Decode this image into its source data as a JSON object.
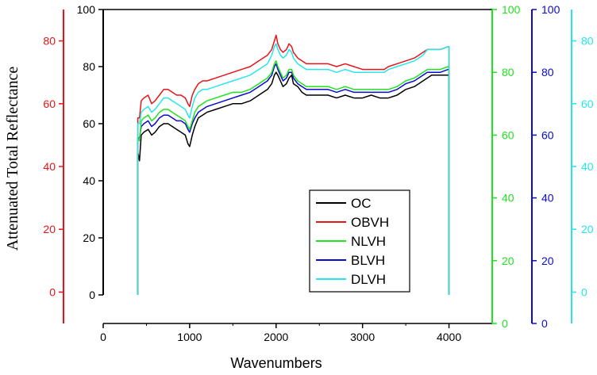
{
  "chart_data": {
    "type": "line",
    "title": "",
    "xlabel": "Wavenumbers",
    "ylabel": "Attenuated  Total  Reflectance",
    "xlim": [
      0,
      4500
    ],
    "x_ticks": [
      0,
      1000,
      2000,
      3000,
      4000
    ],
    "grid": false,
    "legend_position": "lower-right",
    "axes": [
      {
        "name": "red-axis",
        "color": "#e8141b",
        "range": [
          -10,
          90
        ],
        "ticks": [
          0,
          20,
          40,
          60,
          80
        ],
        "tick_labels": [
          "0",
          "20",
          "40",
          "60",
          "80"
        ]
      },
      {
        "name": "black-axis",
        "color": "#000000",
        "range": [
          0,
          100
        ],
        "ticks": [
          0,
          20,
          40,
          60,
          80,
          100
        ],
        "tick_labels": [
          "0",
          "20",
          "40",
          "60",
          "80",
          "100"
        ]
      },
      {
        "name": "green-axis",
        "color": "#1fe31f",
        "range": [
          0,
          100
        ],
        "ticks": [
          0,
          20,
          40,
          60,
          80,
          100
        ],
        "tick_labels": [
          "0",
          "20",
          "40",
          "60",
          "80",
          "100"
        ]
      },
      {
        "name": "blue-axis",
        "color": "#0a0ad0",
        "range": [
          0,
          100
        ],
        "ticks": [
          0,
          20,
          40,
          60,
          80,
          100
        ],
        "tick_labels": [
          "0",
          "20",
          "40",
          "60",
          "80",
          "100"
        ]
      },
      {
        "name": "cyan-axis",
        "color": "#25e6ea",
        "range": [
          -10,
          90
        ],
        "ticks": [
          0,
          20,
          40,
          60,
          80
        ],
        "tick_labels": [
          "0",
          "20",
          "40",
          "60",
          "80"
        ]
      }
    ],
    "series": [
      {
        "name": "OC",
        "color": "#000000",
        "x": [
          400,
          400,
          420,
          440,
          470,
          520,
          560,
          600,
          650,
          700,
          750,
          800,
          850,
          900,
          950,
          980,
          1000,
          1030,
          1060,
          1100,
          1150,
          1200,
          1300,
          1400,
          1500,
          1600,
          1700,
          1800,
          1900,
          1950,
          1980,
          2000,
          2020,
          2050,
          2080,
          2120,
          2150,
          2180,
          2200,
          2250,
          2300,
          2350,
          2400,
          2500,
          2600,
          2700,
          2800,
          2900,
          3000,
          3100,
          3200,
          3250,
          3300,
          3400,
          3500,
          3600,
          3700,
          3750,
          3800,
          3900,
          3990,
          4000,
          4000
        ],
        "y": [
          0,
          50,
          47,
          56,
          57,
          58,
          56,
          57,
          59,
          60,
          60,
          59,
          58,
          57,
          56,
          53,
          52,
          56,
          59,
          62,
          63,
          64,
          65,
          66,
          67,
          67,
          68,
          70,
          72,
          74,
          77,
          78,
          77,
          75,
          73,
          74,
          76,
          77,
          74,
          73,
          71,
          70,
          70,
          70,
          70,
          69,
          70,
          69,
          69,
          70,
          69,
          69,
          69,
          70,
          72,
          73,
          75,
          76,
          77,
          77,
          77,
          77,
          0
        ]
      },
      {
        "name": "OBVH",
        "color": "#e8141b",
        "x": [
          400,
          400,
          420,
          440,
          470,
          520,
          560,
          600,
          650,
          700,
          750,
          800,
          850,
          900,
          950,
          980,
          1000,
          1030,
          1060,
          1100,
          1150,
          1200,
          1300,
          1400,
          1500,
          1600,
          1700,
          1800,
          1900,
          1950,
          1980,
          2000,
          2020,
          2050,
          2080,
          2120,
          2150,
          2180,
          2200,
          2250,
          2300,
          2350,
          2400,
          2500,
          2600,
          2700,
          2800,
          2900,
          3000,
          3100,
          3200,
          3250,
          3300,
          3400,
          3500,
          3600,
          3700,
          3750,
          3800,
          3900,
          3990,
          4000,
          4000
        ],
        "y": [
          0,
          62,
          62,
          68,
          69,
          70,
          67,
          68,
          70,
          72,
          72,
          71,
          70,
          70,
          69,
          67,
          66,
          70,
          72,
          74,
          75,
          75,
          76,
          77,
          78,
          79,
          80,
          82,
          84,
          86,
          89,
          91,
          88,
          86,
          85,
          86,
          88,
          87,
          85,
          83,
          82,
          81,
          81,
          81,
          81,
          80,
          81,
          80,
          79,
          79,
          79,
          79,
          80,
          81,
          82,
          83,
          85,
          86,
          86,
          86,
          87,
          87,
          0
        ]
      },
      {
        "name": "NLVH",
        "color": "#1fe31f",
        "x": [
          400,
          400,
          420,
          440,
          470,
          520,
          560,
          600,
          650,
          700,
          750,
          800,
          850,
          900,
          950,
          980,
          1000,
          1030,
          1060,
          1100,
          1150,
          1200,
          1300,
          1400,
          1500,
          1600,
          1700,
          1800,
          1900,
          1950,
          1980,
          2000,
          2020,
          2050,
          2080,
          2120,
          2150,
          2180,
          2200,
          2250,
          2300,
          2350,
          2400,
          2500,
          2600,
          2700,
          2800,
          2900,
          3000,
          3100,
          3200,
          3250,
          3300,
          3400,
          3500,
          3600,
          3700,
          3750,
          3800,
          3900,
          3990,
          4000,
          4000
        ],
        "y": [
          0,
          55,
          54,
          61,
          62,
          63,
          61,
          62,
          64,
          65,
          65,
          64,
          63,
          62,
          61,
          59,
          58,
          61,
          64,
          66,
          67,
          68,
          69,
          70,
          71,
          71,
          72,
          74,
          76,
          78,
          81,
          82,
          80,
          78,
          76,
          77,
          79,
          79,
          77,
          75,
          74,
          73,
          73,
          73,
          73,
          72,
          73,
          72,
          72,
          72,
          72,
          72,
          72,
          73,
          75,
          76,
          78,
          79,
          79,
          79,
          80,
          80,
          0
        ]
      },
      {
        "name": "BLVH",
        "color": "#0a0ad0",
        "x": [
          400,
          400,
          420,
          440,
          470,
          520,
          560,
          600,
          650,
          700,
          750,
          800,
          850,
          900,
          950,
          980,
          1000,
          1030,
          1060,
          1100,
          1150,
          1200,
          1300,
          1400,
          1500,
          1600,
          1700,
          1800,
          1900,
          1950,
          1980,
          2000,
          2020,
          2050,
          2080,
          2120,
          2150,
          2180,
          2200,
          2250,
          2300,
          2350,
          2400,
          2500,
          2600,
          2700,
          2800,
          2900,
          3000,
          3100,
          3200,
          3250,
          3300,
          3400,
          3500,
          3600,
          3700,
          3750,
          3800,
          3900,
          3990,
          4000,
          4000
        ],
        "y": [
          0,
          55,
          55,
          59,
          60,
          61,
          59,
          60,
          62,
          63,
          63,
          62,
          61,
          61,
          60,
          58,
          57,
          60,
          62,
          64,
          65,
          66,
          67,
          68,
          69,
          70,
          71,
          73,
          75,
          77,
          80,
          81,
          79,
          77,
          75,
          76,
          78,
          78,
          76,
          74,
          73,
          72,
          72,
          72,
          72,
          71,
          72,
          71,
          71,
          71,
          71,
          71,
          71,
          72,
          74,
          75,
          77,
          78,
          78,
          78,
          79,
          79,
          0
        ]
      },
      {
        "name": "DLVH",
        "color": "#25e6ea",
        "x": [
          400,
          400,
          420,
          440,
          470,
          520,
          560,
          600,
          650,
          700,
          750,
          800,
          850,
          900,
          950,
          980,
          1000,
          1030,
          1060,
          1100,
          1150,
          1200,
          1300,
          1400,
          1500,
          1600,
          1700,
          1800,
          1900,
          1950,
          1980,
          2000,
          2020,
          2050,
          2080,
          2120,
          2150,
          2180,
          2200,
          2250,
          2300,
          2350,
          2400,
          2500,
          2600,
          2700,
          2800,
          2900,
          3000,
          3100,
          3200,
          3250,
          3300,
          3400,
          3500,
          3600,
          3700,
          3750,
          3800,
          3900,
          3990,
          4000,
          4000
        ],
        "y": [
          0,
          60,
          60,
          64,
          65,
          66,
          64,
          65,
          67,
          69,
          69,
          68,
          67,
          66,
          65,
          63,
          62,
          66,
          69,
          71,
          72,
          72,
          73,
          74,
          75,
          76,
          77,
          79,
          81,
          84,
          87,
          88,
          86,
          84,
          83,
          84,
          86,
          85,
          83,
          81,
          80,
          79,
          79,
          79,
          79,
          78,
          79,
          78,
          78,
          78,
          78,
          78,
          79,
          80,
          81,
          82,
          84,
          86,
          86,
          86,
          87,
          87,
          0
        ]
      }
    ]
  }
}
